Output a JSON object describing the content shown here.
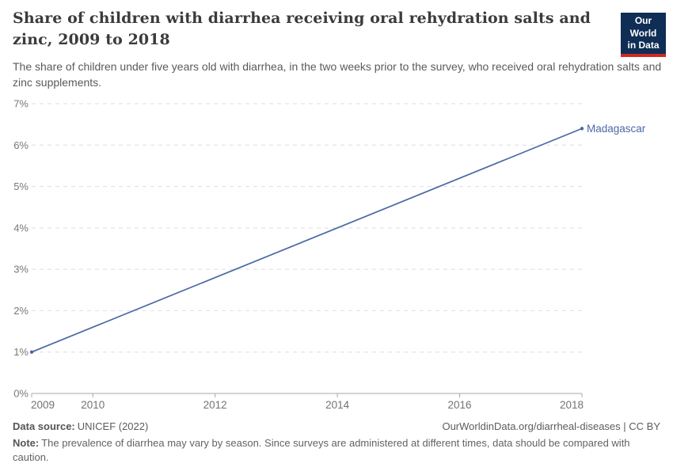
{
  "header": {
    "title": "Share of children with diarrhea receiving oral rehydration salts and zinc, 2009 to 2018",
    "subtitle": "The share of children under five years old with diarrhea, in the two weeks prior to the survey, who received oral rehydration salts and zinc supplements.",
    "logo": {
      "line1": "Our World",
      "line2": "in Data",
      "bg_color": "#0f2d55",
      "bar_color": "#cc2a23"
    }
  },
  "chart_data": {
    "type": "line",
    "title": "Share of children with diarrhea receiving oral rehydration salts and zinc, 2009 to 2018",
    "xlabel": "",
    "ylabel": "",
    "xlim": [
      2009,
      2018
    ],
    "ylim": [
      0,
      7
    ],
    "grid": "horizontal-dashed",
    "legend_position": "end-of-line-label",
    "x_ticks": [
      2009,
      2010,
      2012,
      2014,
      2016,
      2018
    ],
    "y_ticks": [
      {
        "value": 0,
        "label": "0%"
      },
      {
        "value": 1,
        "label": "1%"
      },
      {
        "value": 2,
        "label": "2%"
      },
      {
        "value": 3,
        "label": "3%"
      },
      {
        "value": 4,
        "label": "4%"
      },
      {
        "value": 5,
        "label": "5%"
      },
      {
        "value": 6,
        "label": "6%"
      },
      {
        "value": 7,
        "label": "7%"
      }
    ],
    "series": [
      {
        "name": "Madagascar",
        "color": "#4a69a5",
        "points": [
          {
            "x": 2009,
            "y": 1.0
          },
          {
            "x": 2018,
            "y": 6.4
          }
        ]
      }
    ]
  },
  "footer": {
    "source_label": "Data source:",
    "source_value": "UNICEF (2022)",
    "attribution": "OurWorldinData.org/diarrheal-diseases | CC BY",
    "note_label": "Note:",
    "note_value": "The prevalence of diarrhea may vary by season. Since surveys are administered at different times, data should be compared with caution."
  }
}
